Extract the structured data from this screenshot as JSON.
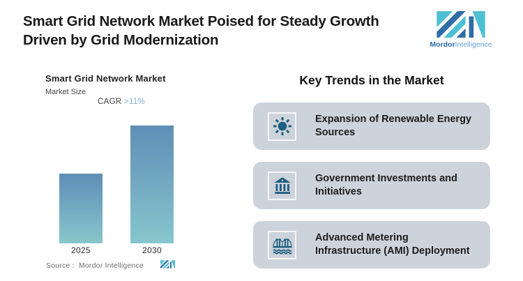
{
  "header": {
    "title_line1": "Smart Grid Network Market Poised for Steady Growth",
    "title_line2": "Driven by Grid Modernization"
  },
  "brand": {
    "name_bold": "Mordor",
    "name_light": "Intelligence",
    "color_dark": "#2f6da6",
    "color_teal": "#4fc0d3"
  },
  "chart": {
    "title": "Smart Grid Network Market",
    "subtitle": "Market Size",
    "cagr_label": "CAGR ",
    "cagr_value": ">11%",
    "source": "Source :  Mordor Intelligence",
    "bar_gradient_top": "#5e8eb7",
    "bar_gradient_bottom": "#88c6cc"
  },
  "chart_data": {
    "type": "bar",
    "title": "Smart Grid Network Market",
    "subtitle": "Market Size",
    "annotation": "CAGR >11%",
    "categories": [
      "2025",
      "2030"
    ],
    "values": [
      1,
      1.69
    ],
    "values_note": "no numeric y-axis shown; relative bar heights with 2025 indexed to 1",
    "xlabel": "",
    "ylabel": "Market Size",
    "grid": false,
    "legend": false,
    "source": "Mordor Intelligence"
  },
  "trends": {
    "heading": "Key Trends in the Market",
    "card_bg": "#cdd3da",
    "icon_color": "#1d5f80",
    "items": [
      {
        "icon": "sun-icon",
        "title": "Expansion of Renewable Energy Sources"
      },
      {
        "icon": "bank-icon",
        "title": "Government Investments and Initiatives"
      },
      {
        "icon": "bridge-icon",
        "title": "Advanced Metering Infrastructure (AMI) Deployment"
      }
    ]
  }
}
